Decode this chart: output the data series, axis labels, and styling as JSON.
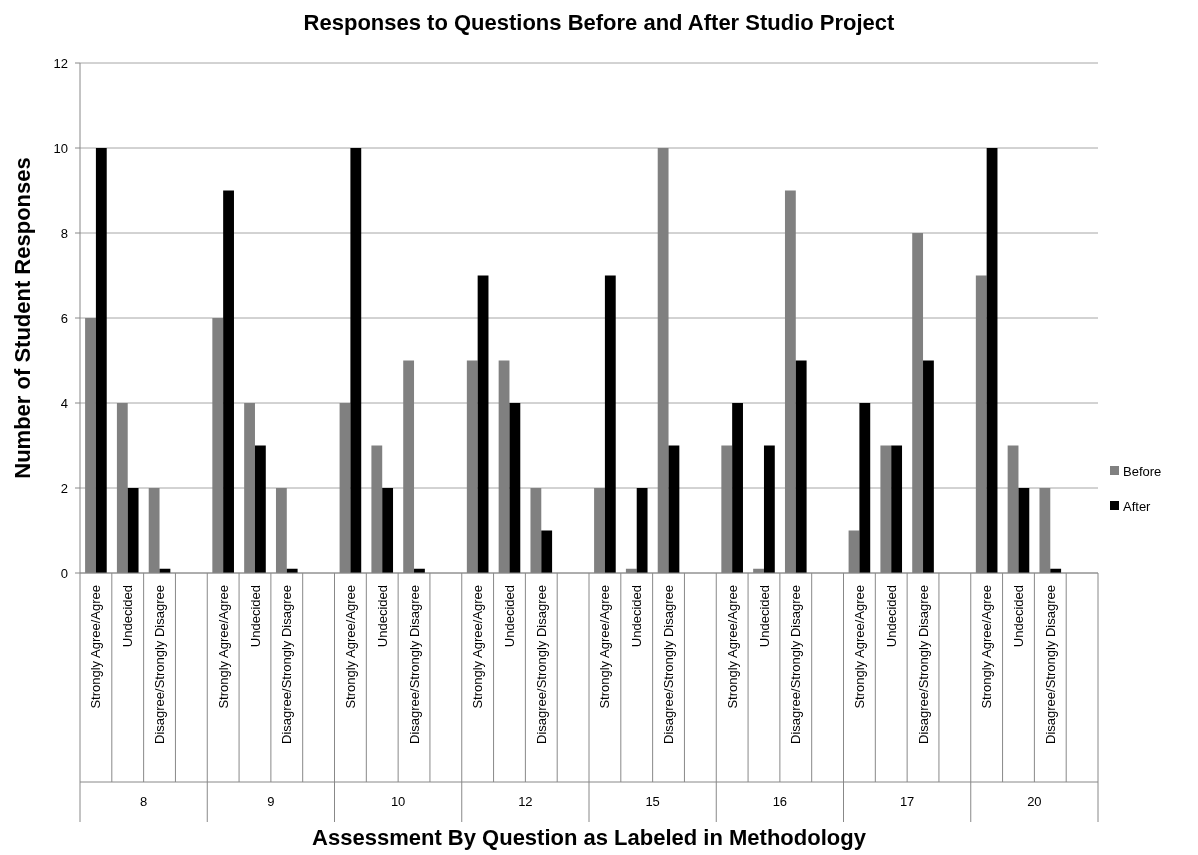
{
  "chart_data": {
    "type": "bar",
    "title": "Responses to Questions Before and After Studio Project",
    "xlabel": "Assessment By Question as Labeled in Methodology",
    "ylabel": "Number of Student Responses",
    "categories": [
      "Strongly Agree/Agree",
      "Undecided",
      "Disagree/Strongly Disagree",
      null,
      "Strongly Agree/Agree",
      "Undecided",
      "Disagree/Strongly Disagree",
      null,
      "Strongly Agree/Agree",
      "Undecided",
      "Disagree/Strongly Disagree",
      null,
      "Strongly Agree/Agree",
      "Undecided",
      "Disagree/Strongly Disagree",
      null,
      "Strongly Agree/Agree",
      "Undecided",
      "Disagree/Strongly Disagree",
      null,
      "Strongly Agree/Agree",
      "Undecided",
      "Disagree/Strongly Disagree",
      null,
      "Strongly Agree/Agree",
      "Undecided",
      "Disagree/Strongly Disagree",
      null,
      "Strongly Agree/Agree",
      "Undecided",
      "Disagree/Strongly Disagree",
      null
    ],
    "series": [
      {
        "name": "Before",
        "color": "#808080",
        "values": [
          6,
          4,
          2,
          null,
          6,
          4,
          2,
          null,
          4,
          3,
          5,
          null,
          5,
          5,
          2,
          null,
          2,
          0.1,
          10,
          null,
          3,
          0.1,
          9,
          null,
          1,
          3,
          8,
          null,
          7,
          3,
          2,
          null
        ]
      },
      {
        "name": "After",
        "color": "#000000",
        "values": [
          10,
          2,
          0.1,
          null,
          9,
          3,
          0.1,
          null,
          10,
          2,
          0.1,
          null,
          7,
          4,
          1,
          null,
          7,
          2,
          3,
          null,
          4,
          3,
          5,
          null,
          4,
          3,
          5,
          null,
          10,
          2,
          0.1,
          null
        ]
      }
    ],
    "annotations": [
      "8",
      "9",
      "10",
      "12",
      "15",
      "16",
      "17",
      "20"
    ],
    "ylim": [
      0,
      12
    ],
    "yticks": [
      0,
      2,
      4,
      6,
      8,
      10,
      12
    ],
    "grid": "y",
    "legend": "right"
  }
}
